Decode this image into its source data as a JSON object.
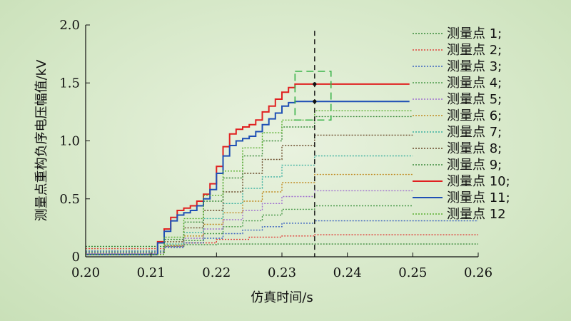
{
  "chart_data": {
    "type": "line",
    "title": "",
    "xlabel": "仿真时间/s",
    "ylabel": "测量点重构负序电压幅值/kV",
    "xlim": [
      0.2,
      0.26
    ],
    "ylim": [
      0,
      2.0
    ],
    "x_ticks": [
      "0.20",
      "0.21",
      "0.22",
      "0.23",
      "0.24",
      "0.25",
      "0.26"
    ],
    "y_ticks": [
      "0",
      "0.5",
      "1.0",
      "1.5",
      "2.0"
    ],
    "grid": false,
    "legend_position": "right",
    "marker_vline_x": 0.235,
    "zoom_box": {
      "x": [
        0.232,
        0.2375
      ],
      "y": [
        1.18,
        1.6
      ]
    },
    "series": [
      {
        "name": "测量点 1;",
        "color": "#3a8a3a",
        "style": "dotted",
        "x": [
          0.2,
          0.2105,
          0.212,
          0.215,
          0.22,
          0.225,
          0.23,
          0.26
        ],
        "y": [
          0.09,
          0.09,
          0.1,
          0.105,
          0.11,
          0.11,
          0.11,
          0.11
        ]
      },
      {
        "name": "测量点 2;",
        "color": "#e0403a",
        "style": "dotted",
        "x": [
          0.2,
          0.2105,
          0.212,
          0.215,
          0.22,
          0.225,
          0.23,
          0.235,
          0.26
        ],
        "y": [
          0.07,
          0.07,
          0.09,
          0.12,
          0.15,
          0.17,
          0.18,
          0.19,
          0.19
        ]
      },
      {
        "name": "测量点 3;",
        "color": "#3a62c0",
        "style": "dotted",
        "x": [
          0.2,
          0.2105,
          0.212,
          0.215,
          0.218,
          0.221,
          0.224,
          0.227,
          0.23,
          0.235,
          0.26
        ],
        "y": [
          0.05,
          0.05,
          0.08,
          0.12,
          0.16,
          0.2,
          0.23,
          0.26,
          0.29,
          0.31,
          0.31
        ]
      },
      {
        "name": "测量点 4;",
        "color": "#4a9a4a",
        "style": "dotted",
        "x": [
          0.2,
          0.2105,
          0.212,
          0.215,
          0.218,
          0.221,
          0.224,
          0.227,
          0.23,
          0.235,
          0.25
        ],
        "y": [
          0.04,
          0.04,
          0.09,
          0.14,
          0.2,
          0.26,
          0.31,
          0.36,
          0.41,
          0.44,
          0.44
        ]
      },
      {
        "name": "测量点 5;",
        "color": "#a070d0",
        "style": "dotted",
        "x": [
          0.2,
          0.2105,
          0.212,
          0.215,
          0.218,
          0.221,
          0.224,
          0.227,
          0.23,
          0.235,
          0.25
        ],
        "y": [
          0.03,
          0.03,
          0.09,
          0.16,
          0.24,
          0.32,
          0.4,
          0.46,
          0.52,
          0.57,
          0.57
        ]
      },
      {
        "name": "测量点 6;",
        "color": "#c08a20",
        "style": "dotted",
        "x": [
          0.2,
          0.2105,
          0.212,
          0.215,
          0.218,
          0.221,
          0.224,
          0.227,
          0.23,
          0.235,
          0.25
        ],
        "y": [
          0.02,
          0.02,
          0.1,
          0.18,
          0.28,
          0.38,
          0.48,
          0.56,
          0.64,
          0.71,
          0.71
        ]
      },
      {
        "name": "测量点 7;",
        "color": "#3ab0a0",
        "style": "dotted",
        "x": [
          0.2,
          0.2105,
          0.212,
          0.215,
          0.218,
          0.221,
          0.224,
          0.227,
          0.23,
          0.235,
          0.25
        ],
        "y": [
          0.02,
          0.02,
          0.11,
          0.21,
          0.33,
          0.46,
          0.59,
          0.69,
          0.79,
          0.87,
          0.87
        ]
      },
      {
        "name": "测量点 8;",
        "color": "#6a4a2a",
        "style": "dotted",
        "x": [
          0.2,
          0.2105,
          0.212,
          0.215,
          0.218,
          0.221,
          0.224,
          0.227,
          0.23,
          0.235,
          0.25
        ],
        "y": [
          0.02,
          0.02,
          0.13,
          0.25,
          0.4,
          0.56,
          0.72,
          0.84,
          0.96,
          1.05,
          1.05
        ]
      },
      {
        "name": "测量点 9;",
        "color": "#3a8a3a",
        "style": "dotted",
        "x": [
          0.2,
          0.2105,
          0.212,
          0.215,
          0.218,
          0.221,
          0.224,
          0.227,
          0.23,
          0.235,
          0.25
        ],
        "y": [
          0.02,
          0.02,
          0.15,
          0.3,
          0.48,
          0.68,
          0.87,
          1.0,
          1.12,
          1.21,
          1.21
        ]
      },
      {
        "name": "测量点 10;",
        "color": "#e02020",
        "style": "solid",
        "x": [
          0.2,
          0.2105,
          0.211,
          0.212,
          0.213,
          0.214,
          0.215,
          0.216,
          0.217,
          0.218,
          0.219,
          0.22,
          0.221,
          0.222,
          0.223,
          0.224,
          0.225,
          0.226,
          0.227,
          0.228,
          0.229,
          0.23,
          0.231,
          0.232,
          0.233,
          0.235,
          0.2495
        ],
        "y": [
          0.02,
          0.02,
          0.13,
          0.24,
          0.34,
          0.4,
          0.42,
          0.44,
          0.48,
          0.54,
          0.63,
          0.78,
          0.95,
          1.06,
          1.1,
          1.12,
          1.14,
          1.18,
          1.25,
          1.3,
          1.36,
          1.42,
          1.46,
          1.49,
          1.49,
          1.49,
          1.49
        ]
      },
      {
        "name": "测量点 11;",
        "color": "#1f4fb5",
        "style": "solid",
        "x": [
          0.2,
          0.2105,
          0.211,
          0.212,
          0.213,
          0.214,
          0.215,
          0.216,
          0.217,
          0.218,
          0.219,
          0.22,
          0.221,
          0.222,
          0.223,
          0.224,
          0.225,
          0.226,
          0.227,
          0.228,
          0.229,
          0.23,
          0.231,
          0.232,
          0.233,
          0.235,
          0.2495
        ],
        "y": [
          0.02,
          0.02,
          0.12,
          0.22,
          0.31,
          0.36,
          0.38,
          0.4,
          0.44,
          0.5,
          0.58,
          0.72,
          0.87,
          0.96,
          1.0,
          1.02,
          1.04,
          1.08,
          1.14,
          1.19,
          1.24,
          1.3,
          1.33,
          1.34,
          1.34,
          1.34,
          1.34
        ]
      },
      {
        "name": "测量点 12",
        "color": "#5ab030",
        "style": "dotted",
        "x": [
          0.2,
          0.2105,
          0.212,
          0.215,
          0.218,
          0.221,
          0.224,
          0.227,
          0.23,
          0.235,
          0.25
        ],
        "y": [
          0.02,
          0.02,
          0.17,
          0.33,
          0.53,
          0.74,
          0.94,
          1.07,
          1.18,
          1.26,
          1.26
        ]
      }
    ]
  }
}
